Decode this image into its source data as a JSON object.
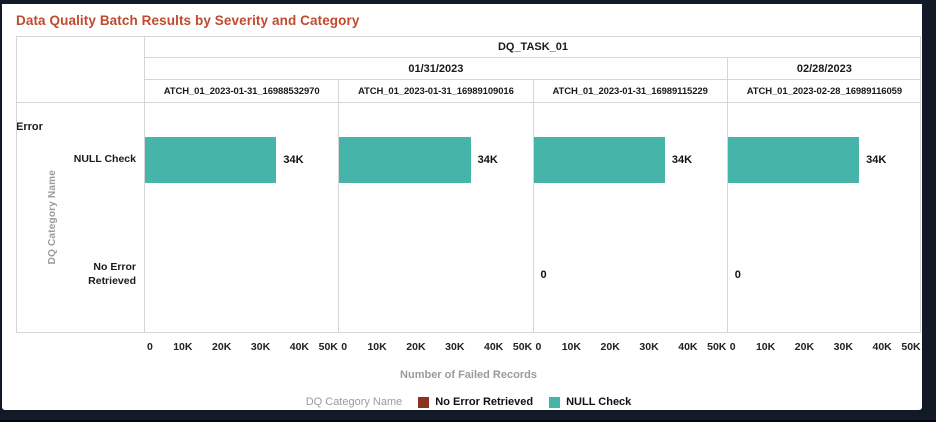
{
  "title": "Data Quality Batch Results by Severity and Category",
  "colors": {
    "title_accent": "#c14a2e",
    "bar_teal": "#47b4aa",
    "legend_maroon": "#8c3420"
  },
  "pivot": {
    "task": "DQ_TASK_01",
    "dates": [
      {
        "label": "01/31/2023"
      },
      {
        "label": "02/28/2023"
      }
    ],
    "batches": [
      "ATCH_01_2023-01-31_16988532970",
      "ATCH_01_2023-01-31_16989109016",
      "ATCH_01_2023-01-31_16989115229",
      "ATCH_01_2023-02-28_16989116059"
    ],
    "severity": "Error",
    "row_axis_title": "DQ Category Name",
    "categories": [
      "NULL Check",
      "No Error Retrieved"
    ]
  },
  "chart_data": {
    "type": "bar",
    "orientation": "horizontal",
    "title": "Data Quality Batch Results by Severity and Category",
    "xlabel": "Number of Failed Records",
    "ylabel": "DQ Category Name",
    "xlim": [
      0,
      50000
    ],
    "xticks": [
      "0",
      "10K",
      "20K",
      "30K",
      "40K",
      "50K"
    ],
    "categories": [
      "NULL Check",
      "No Error Retrieved"
    ],
    "bar_color": "#47b4aa",
    "legend_position": "bottom",
    "grid": false,
    "panels": [
      {
        "task": "DQ_TASK_01",
        "date": "01/31/2023",
        "batch": "ATCH_01_2023-01-31_16988532970",
        "series": [
          {
            "name": "NULL Check",
            "value": 34000,
            "label": "34K"
          },
          {
            "name": "No Error Retrieved",
            "value": null,
            "label": ""
          }
        ]
      },
      {
        "task": "DQ_TASK_01",
        "date": "01/31/2023",
        "batch": "ATCH_01_2023-01-31_16989109016",
        "series": [
          {
            "name": "NULL Check",
            "value": 34000,
            "label": "34K"
          },
          {
            "name": "No Error Retrieved",
            "value": null,
            "label": ""
          }
        ]
      },
      {
        "task": "DQ_TASK_01",
        "date": "01/31/2023",
        "batch": "ATCH_01_2023-01-31_16989115229",
        "series": [
          {
            "name": "NULL Check",
            "value": 34000,
            "label": "34K"
          },
          {
            "name": "No Error Retrieved",
            "value": 0,
            "label": "0"
          }
        ]
      },
      {
        "task": "DQ_TASK_01",
        "date": "02/28/2023",
        "batch": "ATCH_01_2023-02-28_16989116059",
        "series": [
          {
            "name": "NULL Check",
            "value": 34000,
            "label": "34K"
          },
          {
            "name": "No Error Retrieved",
            "value": 0,
            "label": "0"
          }
        ]
      }
    ]
  },
  "legend": {
    "title": "DQ Category Name",
    "items": [
      {
        "label": "No Error Retrieved",
        "color": "#8c3420"
      },
      {
        "label": "NULL Check",
        "color": "#47b4aa"
      }
    ]
  }
}
